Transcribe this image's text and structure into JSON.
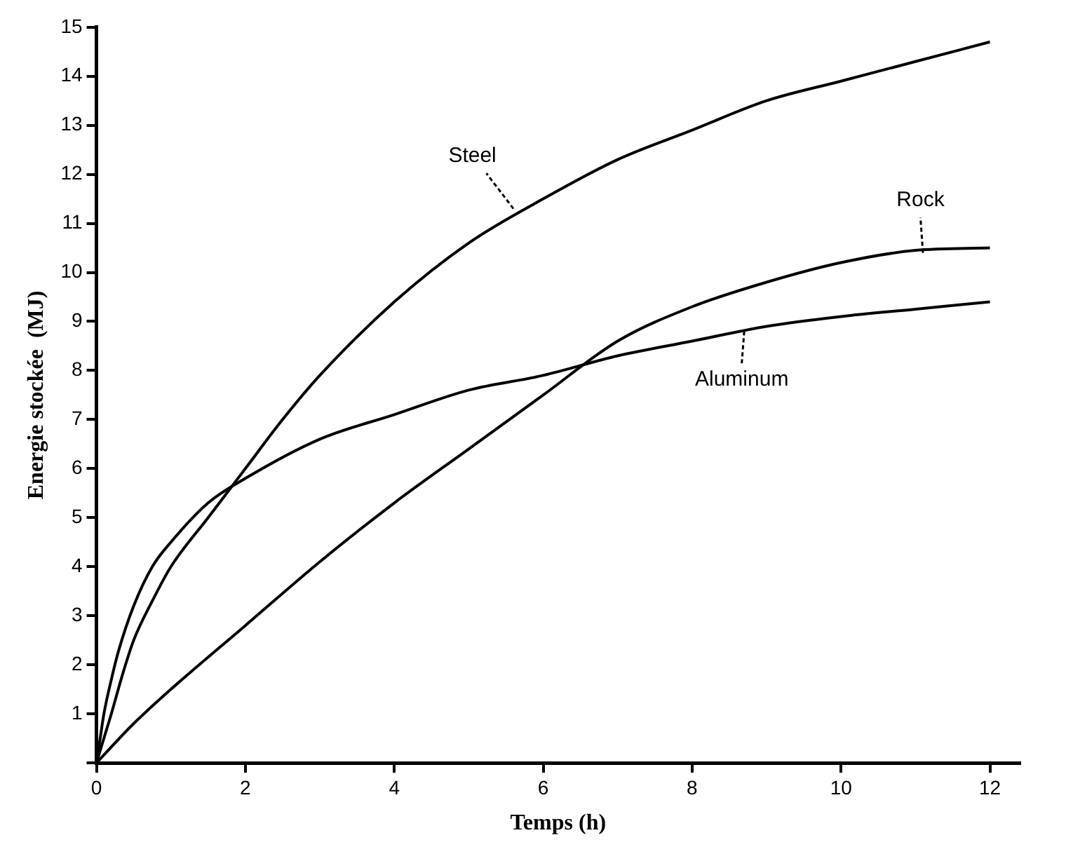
{
  "chart_data": {
    "type": "line",
    "xlabel": "Temps (h)",
    "ylabel": "Energie stockée  (MJ)",
    "xlim": [
      0,
      12.4
    ],
    "ylim": [
      0,
      15
    ],
    "xticks": [
      0,
      2,
      4,
      6,
      8,
      10,
      12
    ],
    "yticks": [
      {
        "value": 0,
        "label": null
      },
      1,
      2,
      3,
      4,
      5,
      6,
      7,
      8,
      9,
      10,
      11,
      12,
      13,
      14,
      15
    ],
    "grid": false,
    "legend": false,
    "marker": "none",
    "line_style": "solid",
    "series": [
      {
        "color": "#000000",
        "x": [
          0,
          0.1,
          0.2,
          0.35,
          0.5,
          0.75,
          1,
          1.5,
          1.8,
          2,
          2.5,
          3,
          4,
          5,
          6,
          7,
          8,
          9,
          10,
          11,
          12
        ],
        "values": [
          0,
          0.5,
          1,
          1.8,
          2.5,
          3.3,
          4,
          5,
          5.6,
          6,
          7,
          7.9,
          9.4,
          10.6,
          11.5,
          12.3,
          12.9,
          13.5,
          13.9,
          14.3,
          14.7
        ]
      },
      {
        "color": "#000000",
        "x": [
          0,
          0.05,
          0.1,
          0.2,
          0.3,
          0.5,
          0.75,
          1,
          1.5,
          2,
          3,
          4,
          5,
          6,
          7,
          8,
          9,
          10,
          11,
          12
        ],
        "values": [
          0,
          0.5,
          1,
          1.7,
          2.3,
          3.2,
          4,
          4.5,
          5.3,
          5.8,
          6.6,
          7.1,
          7.6,
          7.9,
          8.3,
          8.6,
          8.9,
          9.1,
          9.25,
          9.4
        ]
      },
      {
        "color": "#000000",
        "x": [
          0,
          0.5,
          1,
          2,
          3,
          4,
          5,
          6,
          7,
          8,
          9,
          10,
          11,
          12
        ],
        "values": [
          0,
          0.8,
          1.5,
          2.8,
          4.1,
          5.3,
          6.4,
          7.5,
          8.6,
          9.3,
          9.8,
          10.2,
          10.45,
          10.5
        ]
      }
    ],
    "annotations": [
      {
        "text": "Steel",
        "x": 5.6,
        "y": 11.3
      },
      {
        "text": "Rock",
        "x": 11.1,
        "y": 10.4
      },
      {
        "text": "Aluminum",
        "x": 8.7,
        "y": 8.8
      }
    ]
  }
}
